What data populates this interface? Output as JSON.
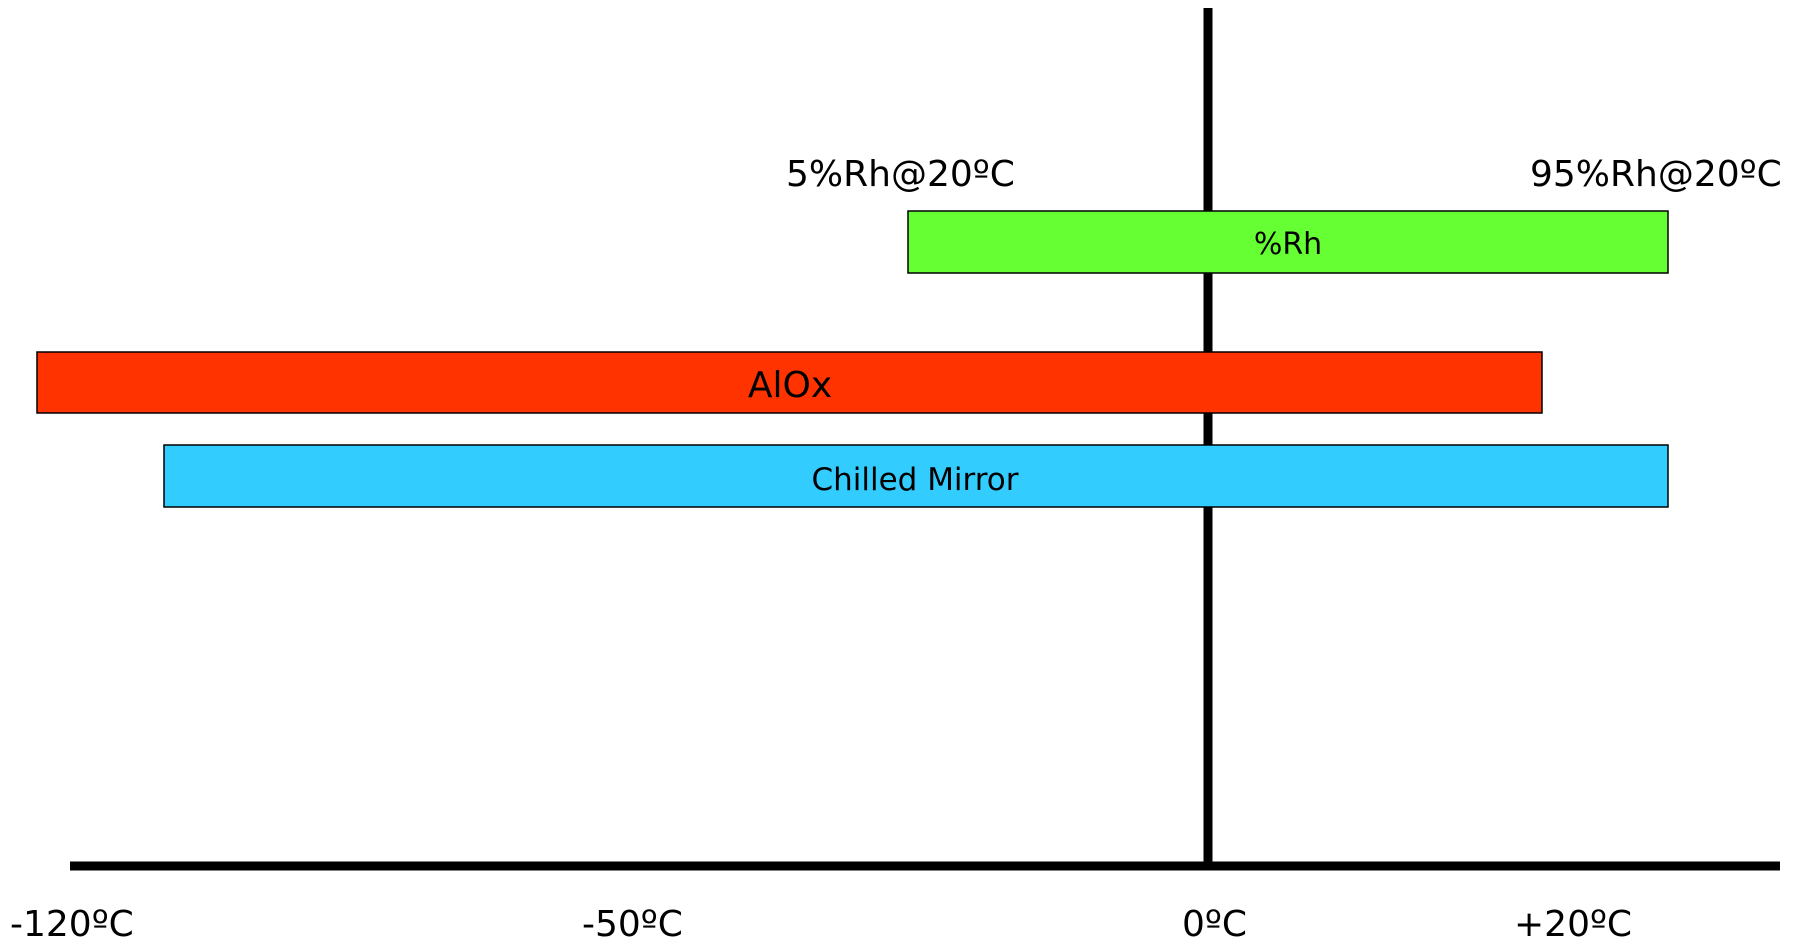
{
  "chart_data": {
    "type": "range-bar",
    "axis": {
      "ticks": [
        {
          "value": -120,
          "label": "-120ºC"
        },
        {
          "value": -50,
          "label": "-50ºC"
        },
        {
          "value": 0,
          "label": "0ºC"
        },
        {
          "value": 20,
          "label": "+20ºC"
        }
      ]
    },
    "bars": [
      {
        "name": "%Rh",
        "label": "%Rh",
        "color": "#66ff33"
      },
      {
        "name": "AlOx",
        "label": "AlOx",
        "color": "#ff3300"
      },
      {
        "name": "Chilled Mirror",
        "label": "Chilled Mirror",
        "color": "#33ccff"
      }
    ],
    "annotations": {
      "rh_low": "5%Rh@20ºC",
      "rh_high": "95%Rh@20ºC"
    }
  }
}
